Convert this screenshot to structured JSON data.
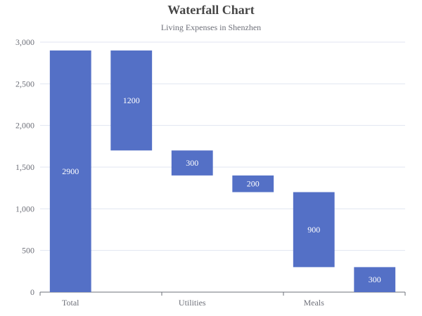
{
  "chart_data": {
    "type": "bar",
    "subtype": "waterfall",
    "title": "Waterfall Chart",
    "subtitle": "Living Expenses in Shenzhen",
    "xlabel": "",
    "ylabel": "",
    "ylim": [
      0,
      3000
    ],
    "yticks": [
      "0",
      "500",
      "1,000",
      "1,500",
      "2,000",
      "2,500",
      "3,000"
    ],
    "x_tick_labels": [
      "Total",
      "Utilities",
      "Meals"
    ],
    "bars": [
      {
        "base": 0,
        "value": 2900,
        "label": "2900"
      },
      {
        "base": 1700,
        "value": 1200,
        "label": "1200"
      },
      {
        "base": 1400,
        "value": 300,
        "label": "300"
      },
      {
        "base": 1200,
        "value": 200,
        "label": "200"
      },
      {
        "base": 300,
        "value": 900,
        "label": "900"
      },
      {
        "base": 0,
        "value": 300,
        "label": "300"
      }
    ],
    "grid": true,
    "color": "#5470c6"
  }
}
